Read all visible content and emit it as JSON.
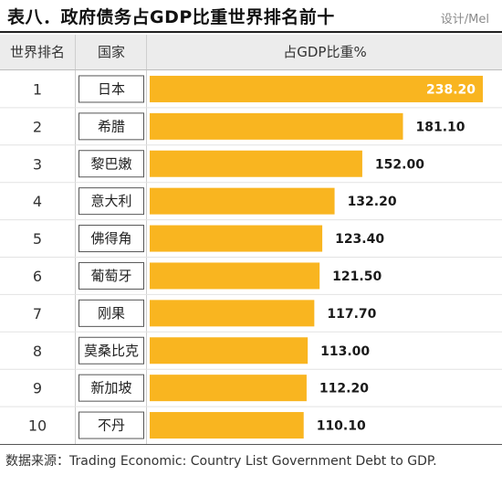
{
  "header": {
    "title": "表八．政府债务占GDP比重世界排名前十",
    "designer": "设计/Mel"
  },
  "columns": {
    "rank": "世界排名",
    "country": "国家",
    "value": "占GDP比重%"
  },
  "source": "数据来源：Trading Economic: Country List Government Debt to GDP.",
  "colors": {
    "bar": "#f9b520",
    "cell_border": "#555555"
  },
  "chart_data": {
    "type": "bar",
    "orientation": "horizontal",
    "ranks": [
      "1",
      "2",
      "3",
      "4",
      "5",
      "6",
      "7",
      "8",
      "9",
      "10"
    ],
    "categories": [
      "日本",
      "希腊",
      "黎巴嫩",
      "意大利",
      "佛得角",
      "葡萄牙",
      "刚果",
      "莫桑比克",
      "新加坡",
      "不丹"
    ],
    "values": [
      238.2,
      181.1,
      152.0,
      132.2,
      123.4,
      121.5,
      117.7,
      113.0,
      112.2,
      110.1
    ],
    "value_labels": [
      "238.20",
      "181.10",
      "152.00",
      "132.20",
      "123.40",
      "121.50",
      "117.70",
      "113.00",
      "112.20",
      "110.10"
    ],
    "xlim": [
      0,
      238.2
    ],
    "title": "表八．政府债务占GDP比重世界排名前十",
    "value_label": "占GDP比重%"
  }
}
